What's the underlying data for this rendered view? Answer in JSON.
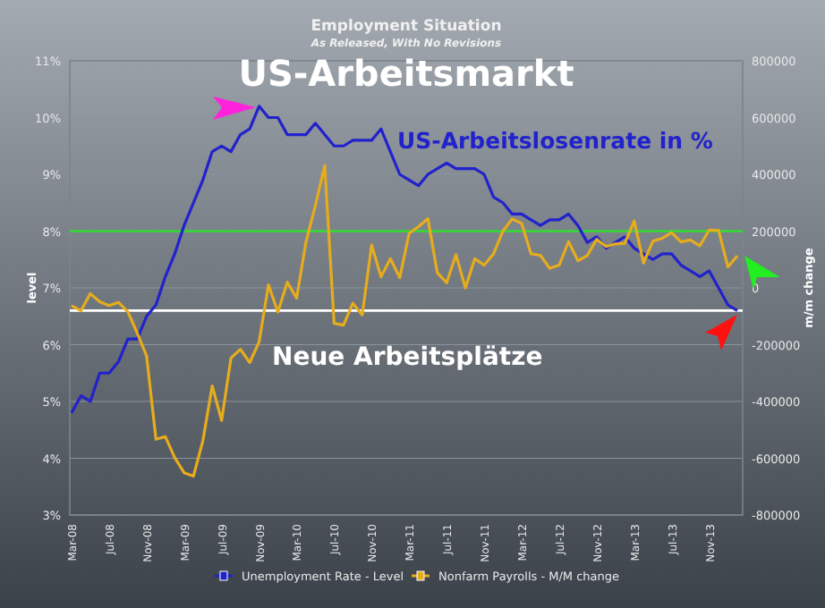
{
  "chart_data": {
    "type": "line",
    "title": "Employment Situation",
    "subtitle": "As Released, With No Revisions",
    "ylabel": "level",
    "y2label": "m/m change",
    "annotations": [
      "US-Arbeitsmarkt",
      "US-Arbeitslosenrate in %",
      "Neue Arbeitsplätze"
    ],
    "categories": [
      "Mar-08",
      null,
      null,
      null,
      "Jul-08",
      null,
      null,
      null,
      "Nov-08",
      null,
      null,
      null,
      "Mar-09",
      null,
      null,
      null,
      "Jul-09",
      null,
      null,
      null,
      "Nov-09",
      null,
      null,
      null,
      "Mar-10",
      null,
      null,
      null,
      "Jul-10",
      null,
      null,
      null,
      "Nov-10",
      null,
      null,
      null,
      "Mar-11",
      null,
      null,
      null,
      "Jul-11",
      null,
      null,
      null,
      "Nov-11",
      null,
      null,
      null,
      "Mar-12",
      null,
      null,
      null,
      "Jul-12",
      null,
      null,
      null,
      "Nov-12",
      null,
      null,
      null,
      "Mar-13",
      null,
      null,
      null,
      "Jul-13",
      null,
      null,
      null,
      "Nov-13",
      null,
      null,
      null
    ],
    "series": [
      {
        "name": "Unemployment Rate - Level",
        "color": "#2222cc",
        "values": [
          4.8,
          5.1,
          5.0,
          5.5,
          5.5,
          5.7,
          6.1,
          6.1,
          6.5,
          6.7,
          7.2,
          7.6,
          8.1,
          8.5,
          8.9,
          9.4,
          9.5,
          9.4,
          9.7,
          9.8,
          10.2,
          10.0,
          10.0,
          9.7,
          9.7,
          9.7,
          9.9,
          9.7,
          9.5,
          9.5,
          9.6,
          9.6,
          9.6,
          9.8,
          9.4,
          9.0,
          8.9,
          8.8,
          9.0,
          9.1,
          9.2,
          9.1,
          9.1,
          9.1,
          9.0,
          8.6,
          8.5,
          8.3,
          8.3,
          8.2,
          8.1,
          8.2,
          8.2,
          8.3,
          8.1,
          7.8,
          7.9,
          7.7,
          7.8,
          7.9,
          7.7,
          7.6,
          7.5,
          7.6,
          7.6,
          7.4,
          7.3,
          7.2,
          7.3,
          7.0,
          6.7,
          6.6
        ]
      },
      {
        "name": "Nonfarm Payrolls - M/M change",
        "color": "#e6ac1e",
        "axis": "y2",
        "values": [
          -63000,
          -80000,
          -20000,
          -49000,
          -62000,
          -51000,
          -84000,
          -159000,
          -240000,
          -533000,
          -524000,
          -598000,
          -651000,
          -663000,
          -539000,
          -345000,
          -467000,
          -247000,
          -216000,
          -263000,
          -190000,
          11000,
          -85000,
          20000,
          -36000,
          162000,
          290000,
          431000,
          -125000,
          -131000,
          -54000,
          -95000,
          151000,
          39000,
          103000,
          36000,
          192000,
          216000,
          244000,
          54000,
          18000,
          117000,
          0,
          103000,
          80000,
          120000,
          200000,
          243000,
          227000,
          120000,
          115000,
          69000,
          80000,
          163000,
          96000,
          114000,
          171000,
          146000,
          155000,
          157000,
          236000,
          88000,
          165000,
          175000,
          195000,
          162000,
          169000,
          148000,
          204000,
          203000,
          74000,
          113000
        ]
      }
    ],
    "ylim": [
      3,
      11
    ],
    "yticks": [
      {
        "value": 3,
        "label": "3%"
      },
      {
        "value": 4,
        "label": "4%"
      },
      {
        "value": 5,
        "label": "5%"
      },
      {
        "value": 6,
        "label": "6%"
      },
      {
        "value": 7,
        "label": "7%"
      },
      {
        "value": 8,
        "label": "8%"
      },
      {
        "value": 9,
        "label": "9%"
      },
      {
        "value": 10,
        "label": "10%"
      },
      {
        "value": 11,
        "label": "11%"
      }
    ],
    "y2lim": [
      -800000,
      800000
    ],
    "y2ticks": [
      -800000,
      -600000,
      -400000,
      -200000,
      0,
      200000,
      400000,
      600000,
      800000
    ],
    "ref_lines": [
      {
        "axis": "y",
        "value": 8,
        "color": "#33dd33"
      },
      {
        "axis": "y",
        "value": 6.6,
        "color": "#ffffff"
      }
    ],
    "grid": "y",
    "legend": "bottom",
    "marker": "none",
    "line_style": "solid"
  }
}
